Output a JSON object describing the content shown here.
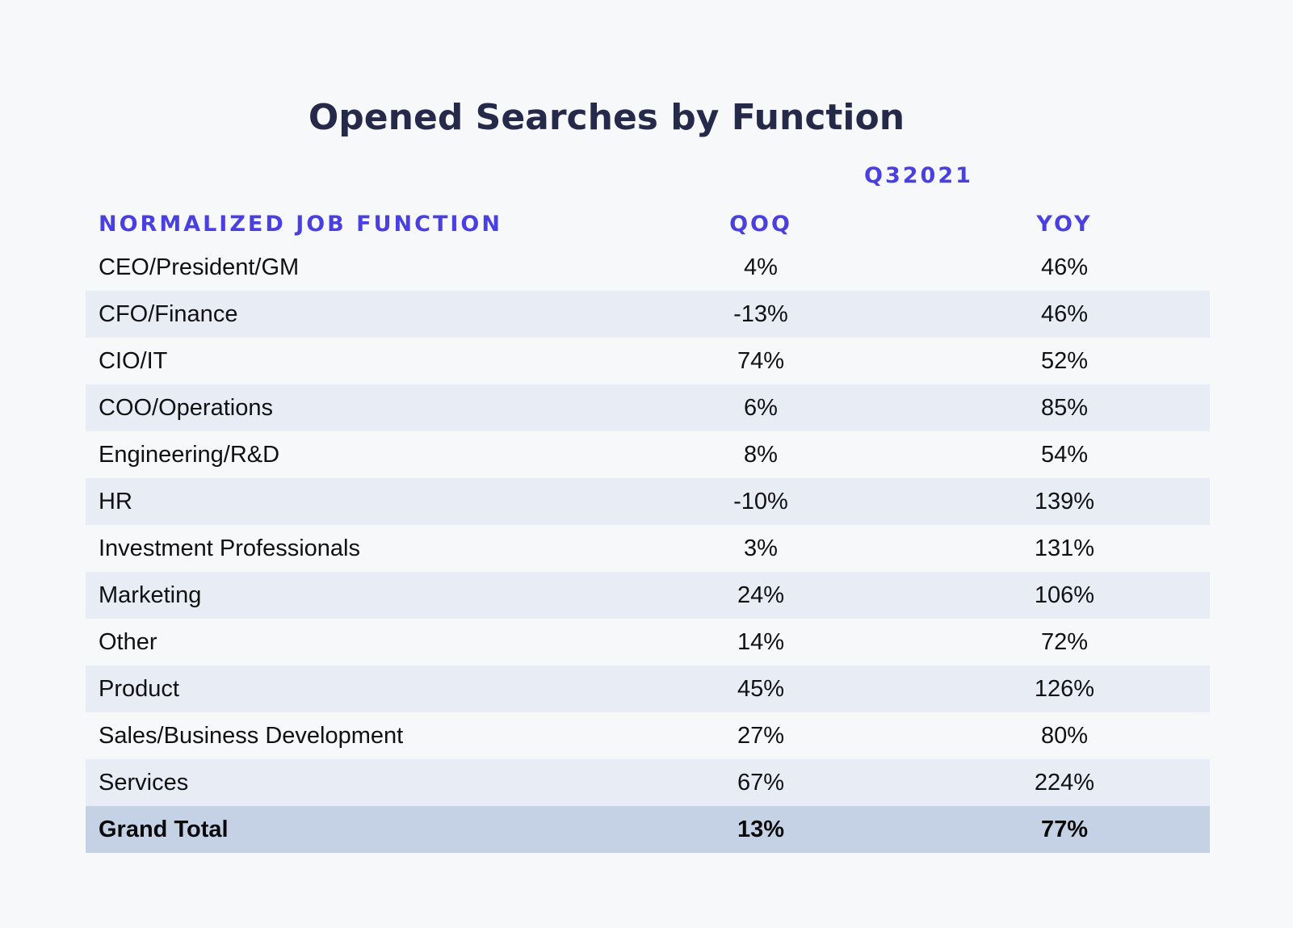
{
  "chart_data": {
    "type": "table",
    "title": "Opened Searches by Function",
    "period": "Q32021",
    "columns": [
      "NORMALIZED JOB FUNCTION",
      "QOQ",
      "YOY"
    ],
    "rows": [
      {
        "function": "CEO/President/GM",
        "qoq": "4%",
        "yoy": "46%"
      },
      {
        "function": "CFO/Finance",
        "qoq": "-13%",
        "yoy": "46%"
      },
      {
        "function": "CIO/IT",
        "qoq": "74%",
        "yoy": "52%"
      },
      {
        "function": "COO/Operations",
        "qoq": "6%",
        "yoy": "85%"
      },
      {
        "function": "Engineering/R&D",
        "qoq": "8%",
        "yoy": "54%"
      },
      {
        "function": "HR",
        "qoq": "-10%",
        "yoy": "139%"
      },
      {
        "function": "Investment Professionals",
        "qoq": "3%",
        "yoy": "131%"
      },
      {
        "function": "Marketing",
        "qoq": "24%",
        "yoy": "106%"
      },
      {
        "function": "Other",
        "qoq": "14%",
        "yoy": "72%"
      },
      {
        "function": "Product",
        "qoq": "45%",
        "yoy": "126%"
      },
      {
        "function": "Sales/Business Development",
        "qoq": "27%",
        "yoy": "80%"
      },
      {
        "function": "Services",
        "qoq": "67%",
        "yoy": "224%"
      }
    ],
    "total": {
      "function": "Grand Total",
      "qoq": "13%",
      "yoy": "77%"
    }
  },
  "colors": {
    "title": "#262a4a",
    "header_accent": "#4a3fe0",
    "row_alt": "#e8ecf4",
    "total_row": "#c5d2e6",
    "background": "#f7f8fa"
  }
}
